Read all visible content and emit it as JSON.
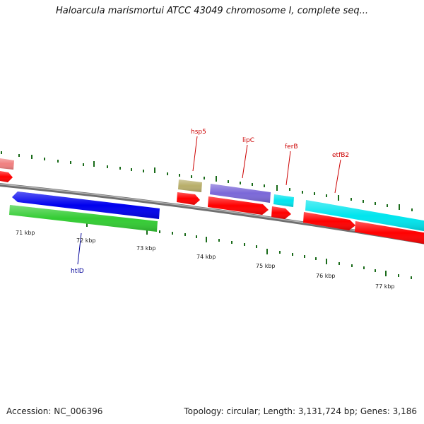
{
  "title": "Haloarcula marismortui ATCC 43049 chromosome I, complete seq...",
  "footer": {
    "accession": "Accession: NC_006396",
    "summary": "Topology: circular; Length: 3,131,724 bp; Genes: 3,186"
  },
  "scale_labels": [
    "71 kbp",
    "72 kbp",
    "73 kbp",
    "74 kbp",
    "75 kbp",
    "76 kbp",
    "77 kbp"
  ],
  "gene_labels": {
    "hsp5": "hsp5",
    "lipC": "lipC",
    "ferB": "ferB",
    "etfB2": "etfB2",
    "htlD": "htlD"
  },
  "colors": {
    "red": "#ff0000",
    "pink": "#f08080",
    "blue": "#0000ee",
    "green": "#33cc33",
    "olive": "#b8ae6a",
    "purple": "#7b68d8",
    "cyan": "#00e5ee",
    "backbone": "#888888",
    "tick": "#1a6b1a",
    "label_red": "#cc0000",
    "label_blue": "#000099"
  }
}
